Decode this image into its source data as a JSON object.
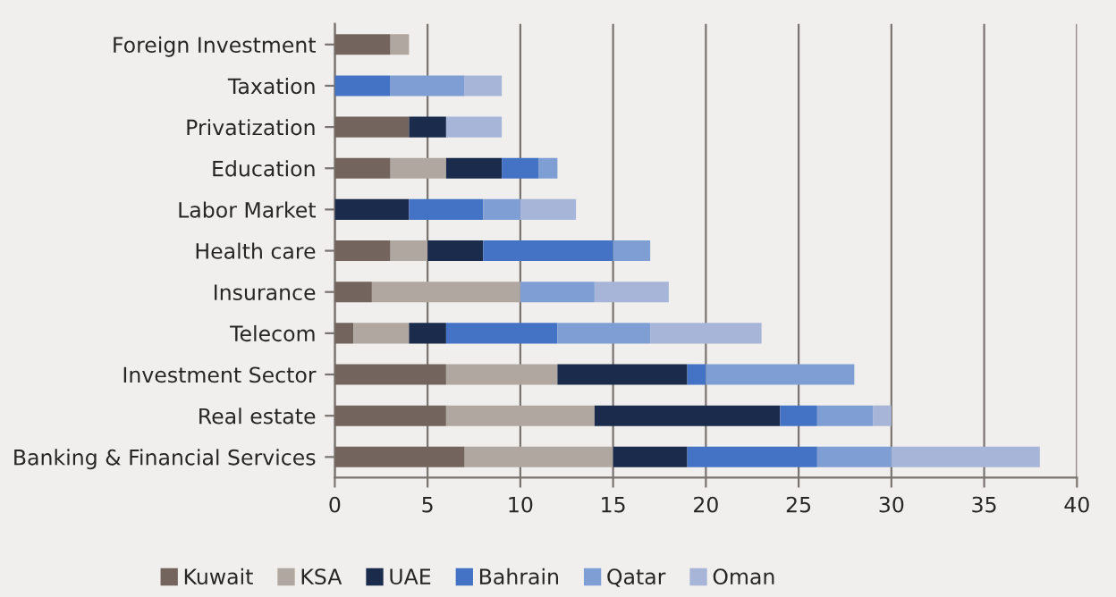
{
  "chart_data": {
    "type": "bar",
    "orientation": "horizontal",
    "stacked": true,
    "categories": [
      "Foreign Investment",
      "Taxation",
      "Privatization",
      "Education",
      "Labor Market",
      "Health care",
      "Insurance",
      "Telecom",
      "Investment Sector",
      "Real estate",
      "Banking & Financial Services"
    ],
    "series": [
      {
        "name": "Kuwait",
        "color": "#73655d",
        "values": [
          3,
          null,
          4,
          3,
          null,
          3,
          2,
          1,
          6,
          6,
          7
        ]
      },
      {
        "name": "KSA",
        "color": "#b0a7a0",
        "values": [
          1,
          null,
          null,
          3,
          null,
          2,
          8,
          3,
          6,
          8,
          8
        ]
      },
      {
        "name": "UAE",
        "color": "#1a2b4c",
        "values": [
          null,
          null,
          2,
          3,
          4,
          3,
          null,
          2,
          7,
          10,
          4
        ]
      },
      {
        "name": "Bahrain",
        "color": "#4472c4",
        "values": [
          null,
          3,
          null,
          2,
          4,
          7,
          null,
          6,
          1,
          2,
          7
        ]
      },
      {
        "name": "Qatar",
        "color": "#7f9fd4",
        "values": [
          null,
          4,
          null,
          1,
          2,
          2,
          4,
          5,
          8,
          3,
          4
        ]
      },
      {
        "name": "Oman",
        "color": "#a7b5d8",
        "values": [
          null,
          2,
          3,
          null,
          3,
          null,
          4,
          6,
          null,
          1,
          8
        ]
      }
    ],
    "xlim": [
      0,
      40
    ],
    "xticks": [
      0,
      5,
      10,
      15,
      20,
      25,
      30,
      35,
      40
    ],
    "grid": "x",
    "legend": "bottom"
  }
}
